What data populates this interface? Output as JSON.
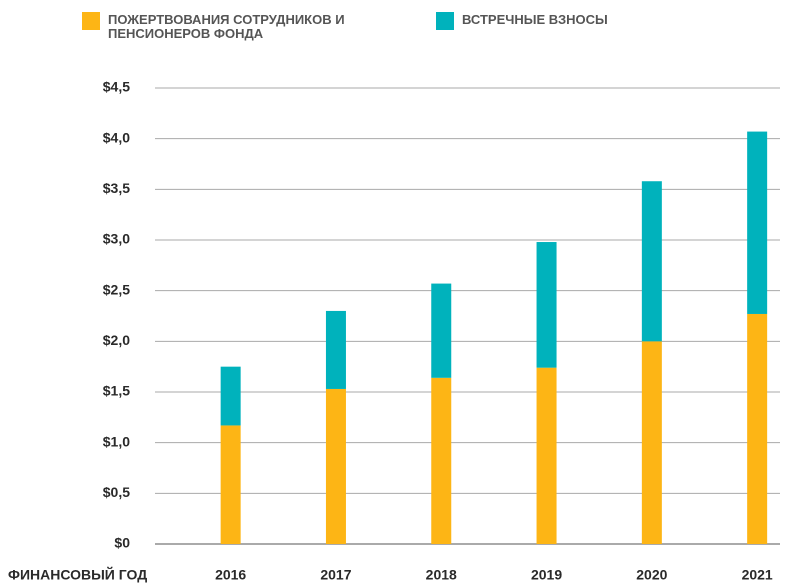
{
  "chart_data": {
    "type": "stacked_bar",
    "categories": [
      "2016",
      "2017",
      "2018",
      "2019",
      "2020",
      "2021"
    ],
    "x_label": "ФИНАНСОВЫЙ ГОД",
    "series": [
      {
        "name": "ПОЖЕРТВОВАНИЯ СОТРУДНИКОВ И ПЕНСИОНЕРОВ ФОНДА",
        "color": "#fdb515",
        "values": [
          1.17,
          1.53,
          1.64,
          1.74,
          2.0,
          2.27
        ]
      },
      {
        "name": "ВСТРЕЧНЫЕ ВЗНОСЫ",
        "color": "#00b2bc",
        "values": [
          0.58,
          0.77,
          0.93,
          1.24,
          1.58,
          1.8
        ]
      }
    ],
    "ylim": [
      0,
      4.5
    ],
    "yticks": [
      {
        "value": 0,
        "label": "$0"
      },
      {
        "value": 0.5,
        "label": "$0,5"
      },
      {
        "value": 1,
        "label": "$1,0"
      },
      {
        "value": 1.5,
        "label": "$1,5"
      },
      {
        "value": 2,
        "label": "$2,0"
      },
      {
        "value": 2.5,
        "label": "$2,5"
      },
      {
        "value": 3,
        "label": "$3,0"
      },
      {
        "value": 3.5,
        "label": "$3,5"
      },
      {
        "value": 4,
        "label": "$4,0"
      },
      {
        "value": 4.5,
        "label": "$4,5"
      }
    ],
    "grid": true,
    "legend": "top"
  }
}
